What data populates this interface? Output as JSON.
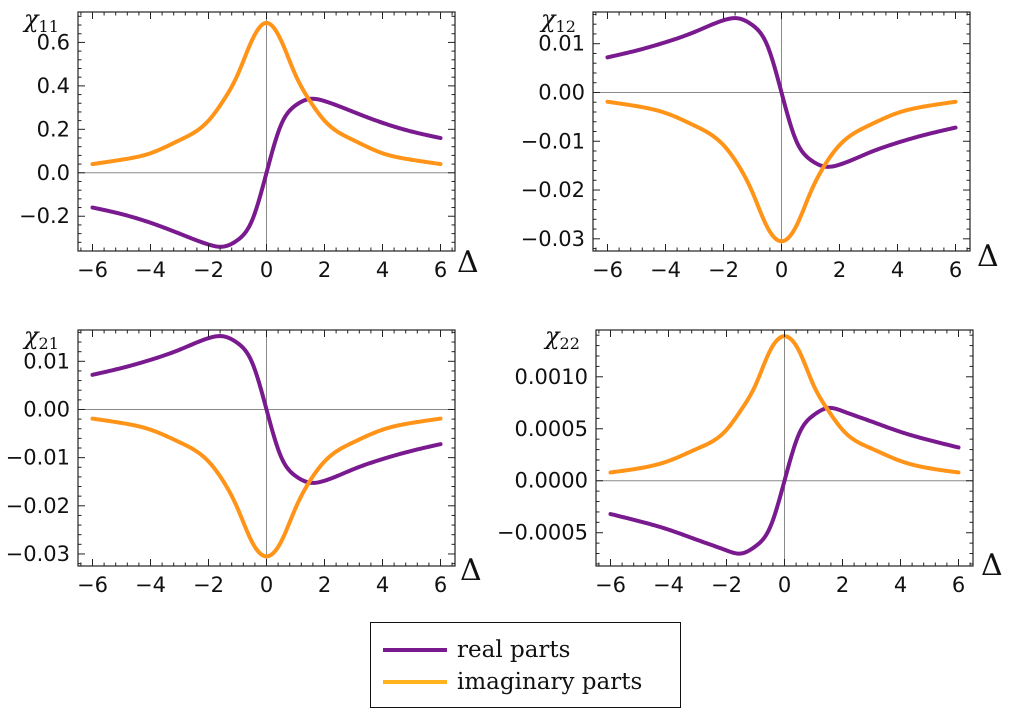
{
  "colors": {
    "real": "#7a1a8f",
    "imag": "#ff9418",
    "frame": "#222222",
    "zero": "#8a8a8a"
  },
  "legend": {
    "items": [
      {
        "label": "real parts",
        "series": "real"
      },
      {
        "label": "imaginary parts",
        "series": "imag"
      }
    ]
  },
  "chart_data": [
    {
      "type": "line",
      "title_symbol": "χ",
      "title_subscript": "11",
      "xlabel": "Δ",
      "xlim": [
        -6.5,
        6.5
      ],
      "ylim": [
        -0.36,
        0.74
      ],
      "xticks": [
        -6,
        -4,
        -2,
        0,
        2,
        4,
        6
      ],
      "xtick_labels": [
        "−6",
        "−4",
        "−2",
        "0",
        "2",
        "4",
        "6"
      ],
      "yticks": [
        -0.2,
        0.0,
        0.2,
        0.4,
        0.6
      ],
      "ytick_labels": [
        "−0.2",
        "0.0",
        "0.2",
        "0.4",
        "0.6"
      ],
      "x": [
        -6,
        -5,
        -4,
        -3,
        -2,
        -1.5,
        -1,
        -0.5,
        0,
        0.5,
        1,
        1.5,
        2,
        3,
        4,
        5,
        6
      ],
      "series": [
        {
          "name": "real parts",
          "key": "real",
          "values": [
            -0.16,
            -0.19,
            -0.23,
            -0.28,
            -0.33,
            -0.34,
            -0.31,
            -0.22,
            0.0,
            0.22,
            0.31,
            0.34,
            0.33,
            0.28,
            0.23,
            0.19,
            0.16
          ]
        },
        {
          "name": "imaginary parts",
          "key": "imag",
          "values": [
            0.04,
            0.06,
            0.09,
            0.15,
            0.24,
            0.33,
            0.45,
            0.61,
            0.69,
            0.61,
            0.45,
            0.33,
            0.24,
            0.15,
            0.09,
            0.06,
            0.04
          ]
        }
      ]
    },
    {
      "type": "line",
      "title_symbol": "χ",
      "title_subscript": "12",
      "xlabel": "Δ",
      "xlim": [
        -6.5,
        6.5
      ],
      "ylim": [
        -0.0325,
        0.0165
      ],
      "xticks": [
        -6,
        -4,
        -2,
        0,
        2,
        4,
        6
      ],
      "xtick_labels": [
        "−6",
        "−4",
        "−2",
        "0",
        "2",
        "4",
        "6"
      ],
      "yticks": [
        -0.03,
        -0.02,
        -0.01,
        0.0,
        0.01
      ],
      "ytick_labels": [
        "−0.03",
        "−0.02",
        "−0.01",
        "0.00",
        "0.01"
      ],
      "x": [
        -6,
        -5,
        -4,
        -3,
        -2,
        -1.5,
        -1,
        -0.5,
        0,
        0.5,
        1,
        1.5,
        2,
        3,
        4,
        5,
        6
      ],
      "series": [
        {
          "name": "real parts",
          "key": "real",
          "values": [
            0.0072,
            0.0086,
            0.0103,
            0.0124,
            0.0148,
            0.0152,
            0.0138,
            0.0098,
            0.0,
            -0.0098,
            -0.0138,
            -0.0152,
            -0.0148,
            -0.0124,
            -0.0103,
            -0.0086,
            -0.0072
          ]
        },
        {
          "name": "imaginary parts",
          "key": "imag",
          "values": [
            -0.0019,
            -0.0028,
            -0.0042,
            -0.0068,
            -0.0108,
            -0.0148,
            -0.0205,
            -0.0275,
            -0.0305,
            -0.0275,
            -0.0205,
            -0.0148,
            -0.0108,
            -0.0068,
            -0.0042,
            -0.0028,
            -0.0019
          ]
        }
      ]
    },
    {
      "type": "line",
      "title_symbol": "χ",
      "title_subscript": "21",
      "xlabel": "Δ",
      "xlim": [
        -6.5,
        6.5
      ],
      "ylim": [
        -0.0325,
        0.0165
      ],
      "xticks": [
        -6,
        -4,
        -2,
        0,
        2,
        4,
        6
      ],
      "xtick_labels": [
        "−6",
        "−4",
        "−2",
        "0",
        "2",
        "4",
        "6"
      ],
      "yticks": [
        -0.03,
        -0.02,
        -0.01,
        0.0,
        0.01
      ],
      "ytick_labels": [
        "−0.03",
        "−0.02",
        "−0.01",
        "0.00",
        "0.01"
      ],
      "x": [
        -6,
        -5,
        -4,
        -3,
        -2,
        -1.5,
        -1,
        -0.5,
        0,
        0.5,
        1,
        1.5,
        2,
        3,
        4,
        5,
        6
      ],
      "series": [
        {
          "name": "real parts",
          "key": "real",
          "values": [
            0.0072,
            0.0086,
            0.0103,
            0.0124,
            0.0148,
            0.0152,
            0.0138,
            0.0098,
            0.0,
            -0.0098,
            -0.0138,
            -0.0152,
            -0.0148,
            -0.0124,
            -0.0103,
            -0.0086,
            -0.0072
          ]
        },
        {
          "name": "imaginary parts",
          "key": "imag",
          "values": [
            -0.0019,
            -0.0028,
            -0.0042,
            -0.0068,
            -0.0108,
            -0.0148,
            -0.0205,
            -0.0275,
            -0.0305,
            -0.0275,
            -0.0205,
            -0.0148,
            -0.0108,
            -0.0068,
            -0.0042,
            -0.0028,
            -0.0019
          ]
        }
      ]
    },
    {
      "type": "line",
      "title_symbol": "χ",
      "title_subscript": "22",
      "xlabel": "Δ",
      "xlim": [
        -6.5,
        6.5
      ],
      "ylim": [
        -0.00082,
        0.00145
      ],
      "xticks": [
        -6,
        -4,
        -2,
        0,
        2,
        4,
        6
      ],
      "xtick_labels": [
        "−6",
        "−4",
        "−2",
        "0",
        "2",
        "4",
        "6"
      ],
      "yticks": [
        -0.0005,
        0.0,
        0.0005,
        0.001
      ],
      "ytick_labels": [
        "−0.0005",
        "0.0000",
        "0.0005",
        "0.0010"
      ],
      "x": [
        -6,
        -5,
        -4,
        -3,
        -2,
        -1.5,
        -1,
        -0.5,
        0,
        0.5,
        1,
        1.5,
        2,
        3,
        4,
        5,
        6
      ],
      "series": [
        {
          "name": "real parts",
          "key": "real",
          "values": [
            -0.00032,
            -0.00039,
            -0.00047,
            -0.00057,
            -0.00067,
            -0.0007,
            -0.00063,
            -0.00045,
            0.0,
            0.00045,
            0.00063,
            0.0007,
            0.00067,
            0.00057,
            0.00047,
            0.00039,
            0.00032
          ]
        },
        {
          "name": "imaginary parts",
          "key": "imag",
          "values": [
            8e-05,
            0.00012,
            0.00019,
            0.00031,
            0.00049,
            0.00068,
            0.00092,
            0.00125,
            0.00139,
            0.00125,
            0.00092,
            0.00068,
            0.00049,
            0.00031,
            0.00019,
            0.00012,
            8e-05
          ]
        }
      ]
    }
  ]
}
